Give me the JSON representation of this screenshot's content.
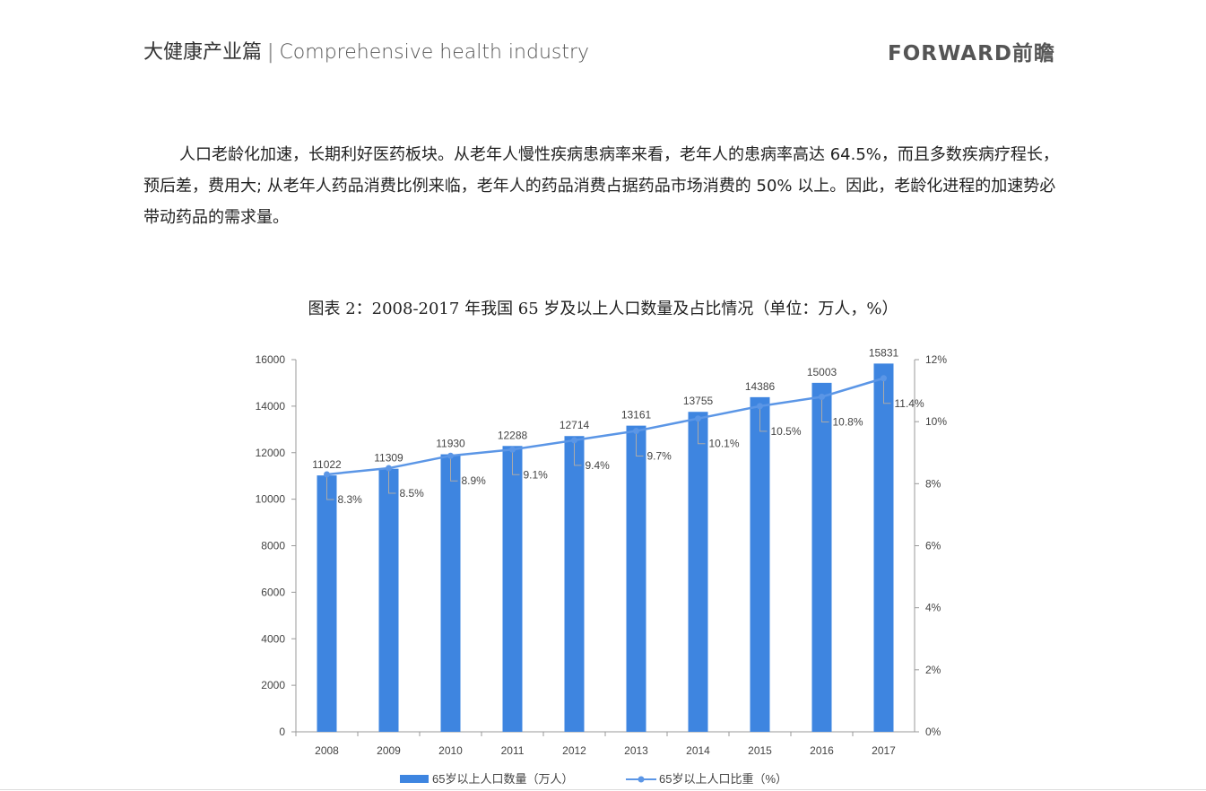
{
  "header": {
    "title_cn": "大健康产业篇",
    "separator": "|",
    "title_en": "Comprehensive health industry",
    "logo": "FORWARD前瞻"
  },
  "body": {
    "paragraph": "人口老龄化加速，长期利好医药板块。从老年人慢性疾病患病率来看，老年人的患病率高达 64.5%，而且多数疾病疗程长，预后差，费用大; 从老年人药品消费比例来临，老年人的药品消费占据药品市场消费的 50% 以上。因此，老龄化进程的加速势必带动药品的需求量。"
  },
  "caption": "图表 2：2008-2017 年我国 65 岁及以上人口数量及占比情况（单位：万人，%）",
  "colors": {
    "bar": "#3e85e0",
    "line": "#5b96e6",
    "axis": "#999999",
    "text": "#444444"
  },
  "chart_data": {
    "type": "bar+line",
    "categories": [
      "2008",
      "2009",
      "2010",
      "2011",
      "2012",
      "2013",
      "2014",
      "2015",
      "2016",
      "2017"
    ],
    "series": [
      {
        "name": "65岁以上人口数量（万人）",
        "type": "bar",
        "axis": "left",
        "values": [
          11022,
          11309,
          11930,
          12288,
          12714,
          13161,
          13755,
          14386,
          15003,
          15831
        ],
        "labels": [
          "11022",
          "11309",
          "11930",
          "12288",
          "12714",
          "13161",
          "13755",
          "14386",
          "15003",
          "15831"
        ]
      },
      {
        "name": "65岁以上人口比重（%）",
        "type": "line",
        "axis": "right",
        "values": [
          8.3,
          8.5,
          8.9,
          9.1,
          9.4,
          9.7,
          10.1,
          10.5,
          10.8,
          11.4
        ],
        "labels": [
          "8.3%",
          "8.5%",
          "8.9%",
          "9.1%",
          "9.4%",
          "9.7%",
          "10.1%",
          "10.5%",
          "10.8%",
          "11.4%"
        ]
      }
    ],
    "y_left": {
      "range": [
        0,
        16000
      ],
      "ticks": [
        "0",
        "2000",
        "4000",
        "6000",
        "8000",
        "10000",
        "12000",
        "14000",
        "16000"
      ]
    },
    "y_right": {
      "range": [
        0,
        12
      ],
      "ticks": [
        "0%",
        "2%",
        "4%",
        "6%",
        "8%",
        "10%",
        "12%"
      ]
    },
    "legend_position": "bottom",
    "grid": false
  }
}
